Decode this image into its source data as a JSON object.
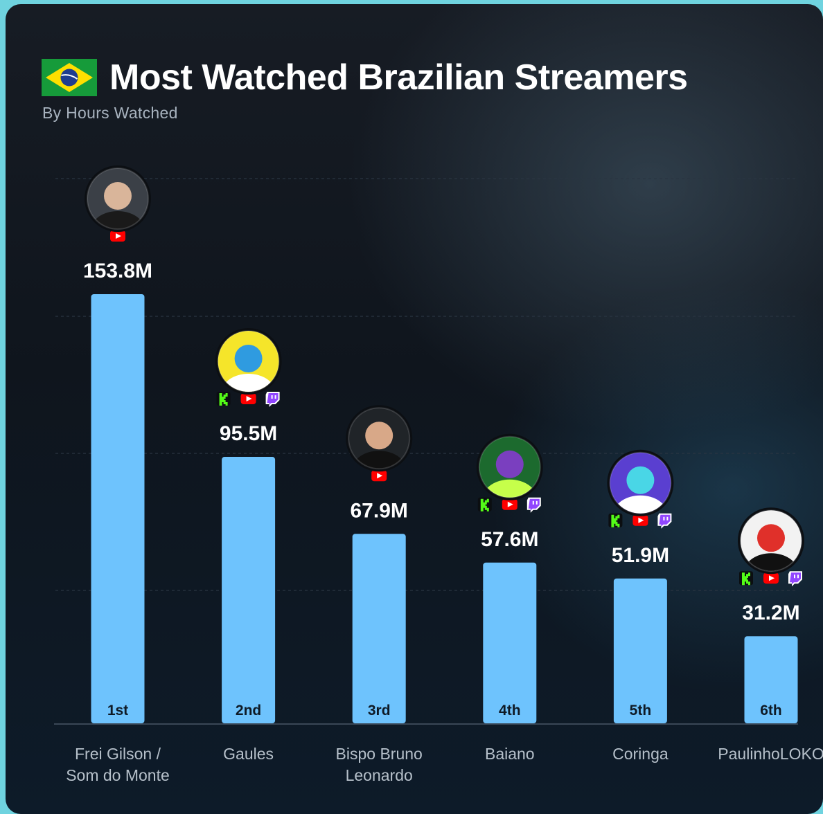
{
  "header": {
    "title": "Most Watched Brazilian Streamers",
    "subtitle": "By Hours Watched",
    "flag_icon": "brazil-flag-icon"
  },
  "colors": {
    "bar": "#6ec3fd",
    "youtube": "#ff0000",
    "kick": "#53fc18",
    "twitch": "#9146ff"
  },
  "chart_data": {
    "type": "bar",
    "title": "Most Watched Brazilian Streamers",
    "subtitle": "By Hours Watched",
    "xlabel": "",
    "ylabel": "",
    "unit": "M hours watched",
    "ylim": [
      0,
      180
    ],
    "grid": true,
    "categories": [
      [
        "Frei Gilson /",
        "Som do Monte"
      ],
      [
        "Gaules"
      ],
      [
        "Bispo Bruno",
        "Leonardo"
      ],
      [
        "Baiano"
      ],
      [
        "Coringa"
      ],
      [
        "PaulinhoLOKO"
      ]
    ],
    "values": [
      153.8,
      95.5,
      67.9,
      57.6,
      51.9,
      31.2
    ],
    "value_labels": [
      "153.8M",
      "95.5M",
      "67.9M",
      "57.6M",
      "51.9M",
      "31.2M"
    ],
    "ranks": [
      "1st",
      "2nd",
      "3rd",
      "4th",
      "5th",
      "6th"
    ],
    "platforms": [
      [
        "youtube"
      ],
      [
        "kick",
        "youtube",
        "twitch"
      ],
      [
        "youtube"
      ],
      [
        "kick",
        "youtube",
        "twitch"
      ],
      [
        "kick",
        "youtube",
        "twitch"
      ],
      [
        "kick",
        "youtube",
        "twitch"
      ]
    ],
    "avatars": [
      "frei-gilson-avatar",
      "gaules-avatar",
      "bispo-bruno-leonardo-avatar",
      "baiano-avatar",
      "coringa-avatar",
      "paulinholoko-avatar"
    ]
  }
}
